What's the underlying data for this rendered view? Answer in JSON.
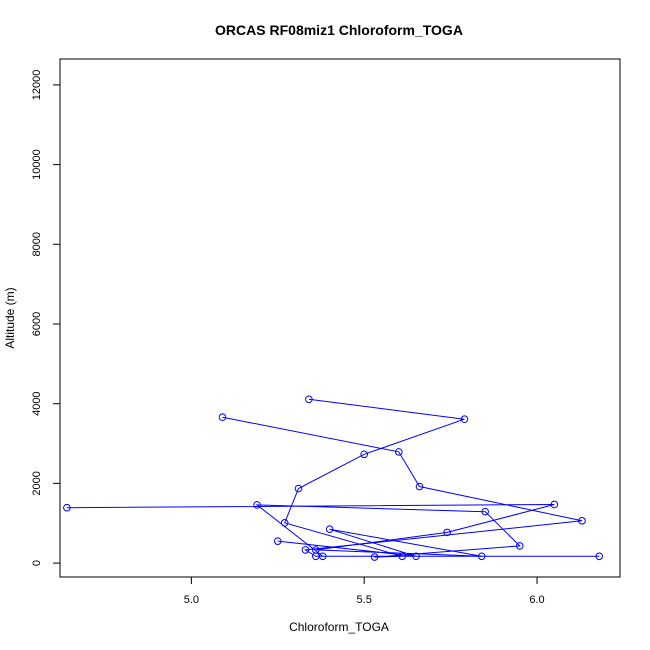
{
  "chart_data": {
    "type": "line",
    "title": "ORCAS RF08miz1 Chloroform_TOGA",
    "xlabel": "Chloroform_TOGA",
    "ylabel": "Altitude (m)",
    "xlim": [
      4.62,
      6.24
    ],
    "ylim": [
      -350,
      12650
    ],
    "x_ticks": [
      5.0,
      5.5,
      6.0
    ],
    "x_tick_labels": [
      "5.0",
      "5.5",
      "6.0"
    ],
    "y_ticks": [
      0,
      2000,
      4000,
      6000,
      8000,
      10000,
      12000
    ],
    "y_tick_labels": [
      "0",
      "2000",
      "4000",
      "6000",
      "8000",
      "10000",
      "12000"
    ],
    "grid": false,
    "markers": "open-circle",
    "series": [
      {
        "color": "#0000ff",
        "points": [
          {
            "x": 5.34,
            "y": 4110
          },
          {
            "x": 5.79,
            "y": 3610
          },
          {
            "x": 5.5,
            "y": 2730
          },
          {
            "x": 5.31,
            "y": 1870
          },
          {
            "x": 5.27,
            "y": 1010
          },
          {
            "x": 5.61,
            "y": 170
          },
          {
            "x": 5.53,
            "y": 150
          },
          {
            "x": 5.95,
            "y": 430
          },
          {
            "x": 5.85,
            "y": 1290
          },
          {
            "x": 5.19,
            "y": 1460
          },
          {
            "x": 5.38,
            "y": 170
          },
          {
            "x": 6.18,
            "y": 170
          },
          {
            "x": 5.36,
            "y": 170
          },
          {
            "x": 5.33,
            "y": 330
          },
          {
            "x": 6.13,
            "y": 1060
          },
          {
            "x": 5.66,
            "y": 1920
          },
          {
            "x": 5.6,
            "y": 2790
          },
          {
            "x": 5.09,
            "y": 3660
          }
        ]
      },
      {
        "color": "#0000ff",
        "points": [
          {
            "x": 4.64,
            "y": 1390
          },
          {
            "x": 6.05,
            "y": 1470
          },
          {
            "x": 5.74,
            "y": 770
          },
          {
            "x": 5.36,
            "y": 330
          },
          {
            "x": 5.84,
            "y": 170
          },
          {
            "x": 5.4,
            "y": 850
          },
          {
            "x": 5.65,
            "y": 170
          },
          {
            "x": 5.25,
            "y": 550
          }
        ]
      }
    ]
  }
}
